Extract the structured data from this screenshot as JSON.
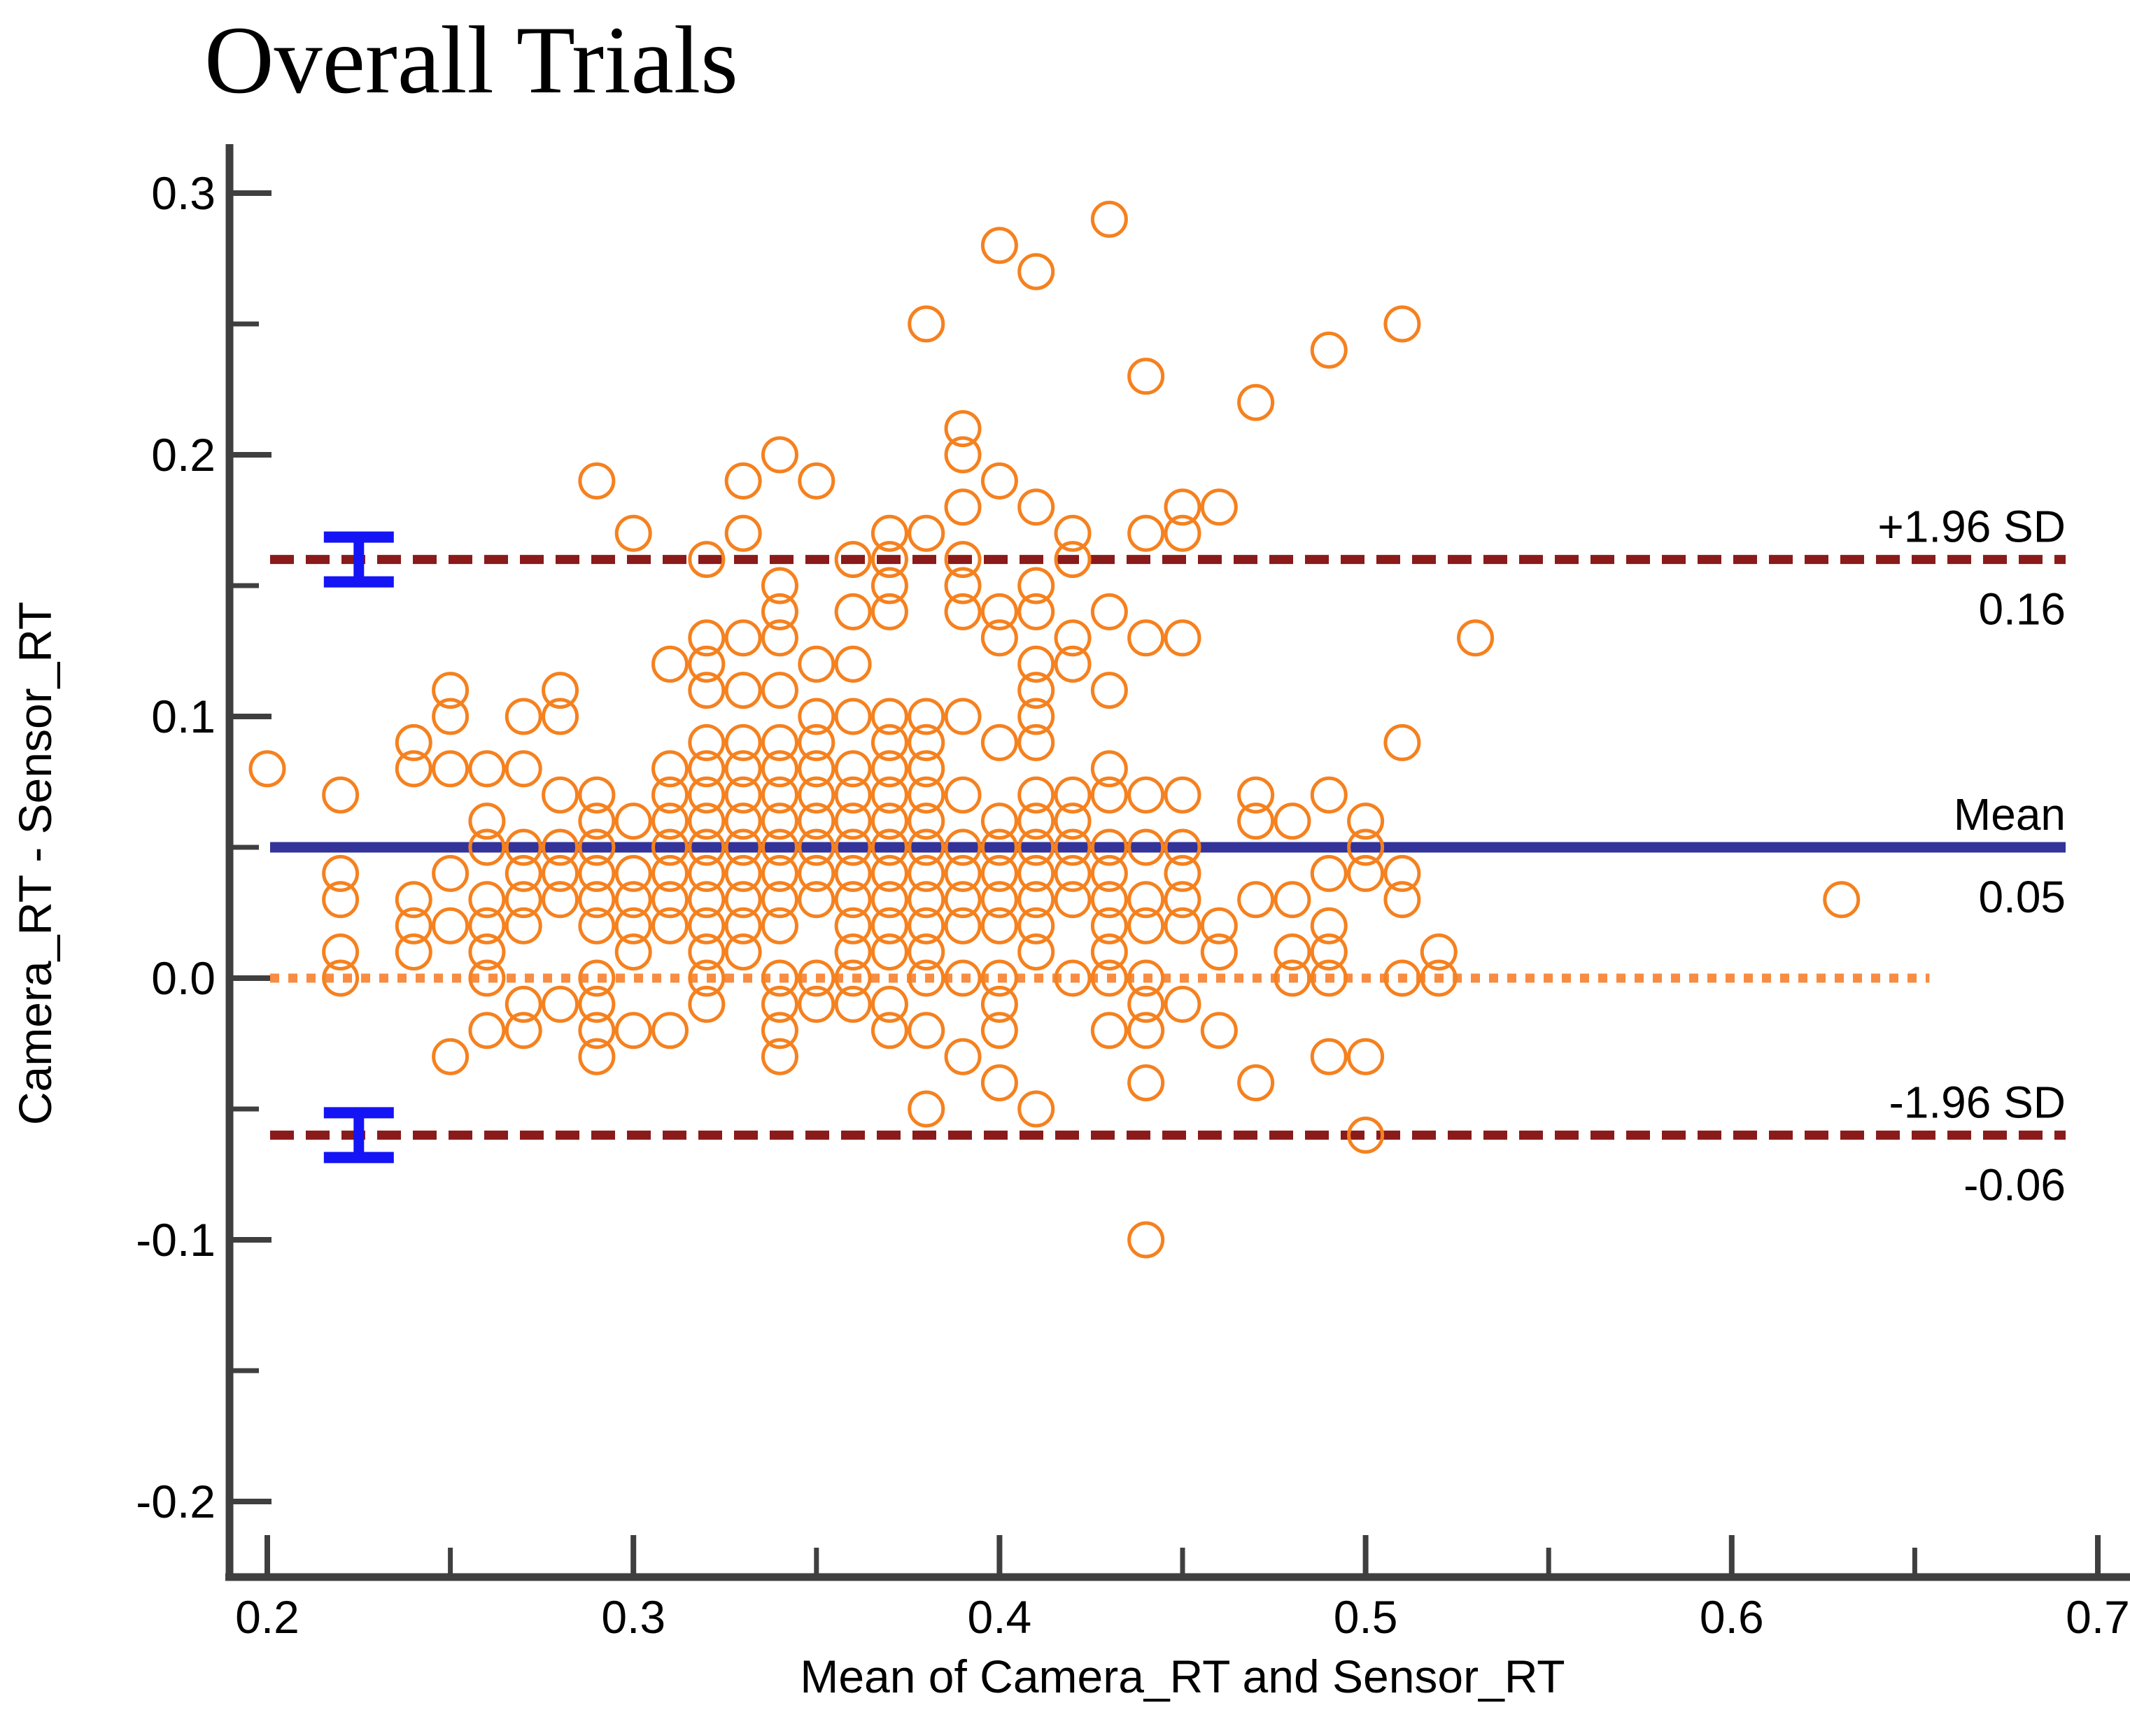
{
  "title": "Overall Trials",
  "colors": {
    "marker": "#F5811F",
    "zero_line": "#F78C42",
    "loa_line": "#8B1A1A",
    "mean_line": "#333399",
    "error_bar": "#1414F5",
    "axis": "#3F3F3F",
    "text": "#000000"
  },
  "chart_data": {
    "type": "scatter",
    "title": "Overall Trials",
    "xlabel": "Mean of Camera_RT and Sensor_RT",
    "ylabel": "Camera_RT - Sensor_RT",
    "xlim": [
      0.19,
      0.71
    ],
    "ylim": [
      -0.23,
      0.32
    ],
    "grid": false,
    "legend_position": "none",
    "x_ticks_major": [
      0.2,
      0.3,
      0.4,
      0.5,
      0.6,
      0.7
    ],
    "x_ticks_minor": [
      0.25,
      0.35,
      0.45,
      0.55,
      0.65
    ],
    "x_tick_labels": [
      "0.2",
      "0.3",
      "0.4",
      "0.5",
      "0.6",
      "0.7"
    ],
    "y_ticks_major": [
      0.3,
      0.2,
      0.1,
      0.0,
      -0.1,
      -0.2
    ],
    "y_ticks_minor": [
      0.25,
      0.15,
      0.05,
      -0.05,
      -0.15
    ],
    "y_tick_labels": [
      "0.3",
      "0.2",
      "0.1",
      "0.0",
      "-0.1",
      "-0.2"
    ],
    "marker": {
      "shape": "open-circle",
      "color": "#F5811F"
    },
    "reference_lines": [
      {
        "name": "upper-loa",
        "label": "+1.96 SD",
        "value_label": "0.16",
        "y": 0.16,
        "style": "dashed",
        "color": "#8B1A1A"
      },
      {
        "name": "mean",
        "label": "Mean",
        "value_label": "0.05",
        "y": 0.05,
        "style": "solid",
        "color": "#333399"
      },
      {
        "name": "lower-loa",
        "label": "-1.96 SD",
        "value_label": "-0.06",
        "y": -0.06,
        "style": "dashed",
        "color": "#8B1A1A"
      },
      {
        "name": "zero",
        "label": "",
        "value_label": "",
        "y": 0.0,
        "style": "dotted",
        "color": "#F78C42",
        "x_end": 0.654
      }
    ],
    "error_bars": [
      {
        "x": 0.225,
        "y": 0.16
      },
      {
        "x": 0.225,
        "y": -0.06
      }
    ],
    "points": [
      [
        0.43,
        0.29
      ],
      [
        0.4,
        0.28
      ],
      [
        0.41,
        0.27
      ],
      [
        0.38,
        0.25
      ],
      [
        0.51,
        0.25
      ],
      [
        0.49,
        0.24
      ],
      [
        0.44,
        0.23
      ],
      [
        0.47,
        0.22
      ],
      [
        0.39,
        0.21
      ],
      [
        0.34,
        0.2
      ],
      [
        0.39,
        0.2
      ],
      [
        0.29,
        0.19
      ],
      [
        0.33,
        0.19
      ],
      [
        0.35,
        0.19
      ],
      [
        0.4,
        0.19
      ],
      [
        0.39,
        0.18
      ],
      [
        0.41,
        0.18
      ],
      [
        0.45,
        0.18
      ],
      [
        0.46,
        0.18
      ],
      [
        0.3,
        0.17
      ],
      [
        0.33,
        0.17
      ],
      [
        0.37,
        0.17
      ],
      [
        0.38,
        0.17
      ],
      [
        0.42,
        0.17
      ],
      [
        0.44,
        0.17
      ],
      [
        0.45,
        0.17
      ],
      [
        0.32,
        0.16
      ],
      [
        0.36,
        0.16
      ],
      [
        0.37,
        0.16
      ],
      [
        0.39,
        0.16
      ],
      [
        0.42,
        0.16
      ],
      [
        0.34,
        0.15
      ],
      [
        0.37,
        0.15
      ],
      [
        0.39,
        0.15
      ],
      [
        0.41,
        0.15
      ],
      [
        0.34,
        0.14
      ],
      [
        0.36,
        0.14
      ],
      [
        0.37,
        0.14
      ],
      [
        0.39,
        0.14
      ],
      [
        0.4,
        0.14
      ],
      [
        0.41,
        0.14
      ],
      [
        0.43,
        0.14
      ],
      [
        0.32,
        0.13
      ],
      [
        0.33,
        0.13
      ],
      [
        0.34,
        0.13
      ],
      [
        0.4,
        0.13
      ],
      [
        0.42,
        0.13
      ],
      [
        0.44,
        0.13
      ],
      [
        0.45,
        0.13
      ],
      [
        0.53,
        0.13
      ],
      [
        0.31,
        0.12
      ],
      [
        0.32,
        0.12
      ],
      [
        0.35,
        0.12
      ],
      [
        0.36,
        0.12
      ],
      [
        0.41,
        0.12
      ],
      [
        0.42,
        0.12
      ],
      [
        0.25,
        0.11
      ],
      [
        0.28,
        0.11
      ],
      [
        0.32,
        0.11
      ],
      [
        0.33,
        0.11
      ],
      [
        0.34,
        0.11
      ],
      [
        0.41,
        0.11
      ],
      [
        0.43,
        0.11
      ],
      [
        0.25,
        0.1
      ],
      [
        0.27,
        0.1
      ],
      [
        0.28,
        0.1
      ],
      [
        0.35,
        0.1
      ],
      [
        0.36,
        0.1
      ],
      [
        0.37,
        0.1
      ],
      [
        0.38,
        0.1
      ],
      [
        0.39,
        0.1
      ],
      [
        0.41,
        0.1
      ],
      [
        0.24,
        0.09
      ],
      [
        0.32,
        0.09
      ],
      [
        0.33,
        0.09
      ],
      [
        0.34,
        0.09
      ],
      [
        0.35,
        0.09
      ],
      [
        0.37,
        0.09
      ],
      [
        0.38,
        0.09
      ],
      [
        0.4,
        0.09
      ],
      [
        0.41,
        0.09
      ],
      [
        0.51,
        0.09
      ],
      [
        0.2,
        0.08
      ],
      [
        0.24,
        0.08
      ],
      [
        0.25,
        0.08
      ],
      [
        0.26,
        0.08
      ],
      [
        0.27,
        0.08
      ],
      [
        0.31,
        0.08
      ],
      [
        0.32,
        0.08
      ],
      [
        0.33,
        0.08
      ],
      [
        0.34,
        0.08
      ],
      [
        0.35,
        0.08
      ],
      [
        0.36,
        0.08
      ],
      [
        0.37,
        0.08
      ],
      [
        0.38,
        0.08
      ],
      [
        0.43,
        0.08
      ],
      [
        0.22,
        0.07
      ],
      [
        0.28,
        0.07
      ],
      [
        0.29,
        0.07
      ],
      [
        0.31,
        0.07
      ],
      [
        0.32,
        0.07
      ],
      [
        0.33,
        0.07
      ],
      [
        0.34,
        0.07
      ],
      [
        0.35,
        0.07
      ],
      [
        0.36,
        0.07
      ],
      [
        0.37,
        0.07
      ],
      [
        0.38,
        0.07
      ],
      [
        0.39,
        0.07
      ],
      [
        0.41,
        0.07
      ],
      [
        0.42,
        0.07
      ],
      [
        0.43,
        0.07
      ],
      [
        0.44,
        0.07
      ],
      [
        0.45,
        0.07
      ],
      [
        0.47,
        0.07
      ],
      [
        0.49,
        0.07
      ],
      [
        0.26,
        0.06
      ],
      [
        0.29,
        0.06
      ],
      [
        0.3,
        0.06
      ],
      [
        0.31,
        0.06
      ],
      [
        0.32,
        0.06
      ],
      [
        0.33,
        0.06
      ],
      [
        0.34,
        0.06
      ],
      [
        0.35,
        0.06
      ],
      [
        0.36,
        0.06
      ],
      [
        0.37,
        0.06
      ],
      [
        0.38,
        0.06
      ],
      [
        0.4,
        0.06
      ],
      [
        0.41,
        0.06
      ],
      [
        0.42,
        0.06
      ],
      [
        0.47,
        0.06
      ],
      [
        0.48,
        0.06
      ],
      [
        0.5,
        0.06
      ],
      [
        0.26,
        0.05
      ],
      [
        0.27,
        0.05
      ],
      [
        0.28,
        0.05
      ],
      [
        0.29,
        0.05
      ],
      [
        0.31,
        0.05
      ],
      [
        0.32,
        0.05
      ],
      [
        0.33,
        0.05
      ],
      [
        0.34,
        0.05
      ],
      [
        0.35,
        0.05
      ],
      [
        0.36,
        0.05
      ],
      [
        0.37,
        0.05
      ],
      [
        0.38,
        0.05
      ],
      [
        0.39,
        0.05
      ],
      [
        0.4,
        0.05
      ],
      [
        0.41,
        0.05
      ],
      [
        0.42,
        0.05
      ],
      [
        0.43,
        0.05
      ],
      [
        0.44,
        0.05
      ],
      [
        0.45,
        0.05
      ],
      [
        0.5,
        0.05
      ],
      [
        0.22,
        0.04
      ],
      [
        0.25,
        0.04
      ],
      [
        0.27,
        0.04
      ],
      [
        0.28,
        0.04
      ],
      [
        0.29,
        0.04
      ],
      [
        0.3,
        0.04
      ],
      [
        0.31,
        0.04
      ],
      [
        0.32,
        0.04
      ],
      [
        0.33,
        0.04
      ],
      [
        0.34,
        0.04
      ],
      [
        0.35,
        0.04
      ],
      [
        0.36,
        0.04
      ],
      [
        0.37,
        0.04
      ],
      [
        0.38,
        0.04
      ],
      [
        0.39,
        0.04
      ],
      [
        0.4,
        0.04
      ],
      [
        0.41,
        0.04
      ],
      [
        0.42,
        0.04
      ],
      [
        0.43,
        0.04
      ],
      [
        0.45,
        0.04
      ],
      [
        0.49,
        0.04
      ],
      [
        0.5,
        0.04
      ],
      [
        0.51,
        0.04
      ],
      [
        0.22,
        0.03
      ],
      [
        0.24,
        0.03
      ],
      [
        0.26,
        0.03
      ],
      [
        0.27,
        0.03
      ],
      [
        0.28,
        0.03
      ],
      [
        0.29,
        0.03
      ],
      [
        0.3,
        0.03
      ],
      [
        0.31,
        0.03
      ],
      [
        0.32,
        0.03
      ],
      [
        0.33,
        0.03
      ],
      [
        0.34,
        0.03
      ],
      [
        0.35,
        0.03
      ],
      [
        0.36,
        0.03
      ],
      [
        0.37,
        0.03
      ],
      [
        0.38,
        0.03
      ],
      [
        0.39,
        0.03
      ],
      [
        0.4,
        0.03
      ],
      [
        0.41,
        0.03
      ],
      [
        0.42,
        0.03
      ],
      [
        0.43,
        0.03
      ],
      [
        0.44,
        0.03
      ],
      [
        0.45,
        0.03
      ],
      [
        0.47,
        0.03
      ],
      [
        0.48,
        0.03
      ],
      [
        0.51,
        0.03
      ],
      [
        0.63,
        0.03
      ],
      [
        0.24,
        0.02
      ],
      [
        0.25,
        0.02
      ],
      [
        0.26,
        0.02
      ],
      [
        0.27,
        0.02
      ],
      [
        0.29,
        0.02
      ],
      [
        0.3,
        0.02
      ],
      [
        0.31,
        0.02
      ],
      [
        0.32,
        0.02
      ],
      [
        0.33,
        0.02
      ],
      [
        0.34,
        0.02
      ],
      [
        0.36,
        0.02
      ],
      [
        0.37,
        0.02
      ],
      [
        0.38,
        0.02
      ],
      [
        0.39,
        0.02
      ],
      [
        0.4,
        0.02
      ],
      [
        0.41,
        0.02
      ],
      [
        0.43,
        0.02
      ],
      [
        0.44,
        0.02
      ],
      [
        0.45,
        0.02
      ],
      [
        0.46,
        0.02
      ],
      [
        0.49,
        0.02
      ],
      [
        0.22,
        0.01
      ],
      [
        0.24,
        0.01
      ],
      [
        0.26,
        0.01
      ],
      [
        0.3,
        0.01
      ],
      [
        0.32,
        0.01
      ],
      [
        0.33,
        0.01
      ],
      [
        0.36,
        0.01
      ],
      [
        0.37,
        0.01
      ],
      [
        0.38,
        0.01
      ],
      [
        0.41,
        0.01
      ],
      [
        0.43,
        0.01
      ],
      [
        0.46,
        0.01
      ],
      [
        0.48,
        0.01
      ],
      [
        0.49,
        0.01
      ],
      [
        0.52,
        0.01
      ],
      [
        0.22,
        0.0
      ],
      [
        0.26,
        0.0
      ],
      [
        0.29,
        0.0
      ],
      [
        0.32,
        0.0
      ],
      [
        0.34,
        0.0
      ],
      [
        0.35,
        0.0
      ],
      [
        0.36,
        0.0
      ],
      [
        0.38,
        0.0
      ],
      [
        0.39,
        0.0
      ],
      [
        0.4,
        0.0
      ],
      [
        0.42,
        0.0
      ],
      [
        0.43,
        0.0
      ],
      [
        0.44,
        0.0
      ],
      [
        0.48,
        0.0
      ],
      [
        0.49,
        0.0
      ],
      [
        0.51,
        0.0
      ],
      [
        0.52,
        0.0
      ],
      [
        0.27,
        -0.01
      ],
      [
        0.28,
        -0.01
      ],
      [
        0.29,
        -0.01
      ],
      [
        0.32,
        -0.01
      ],
      [
        0.34,
        -0.01
      ],
      [
        0.35,
        -0.01
      ],
      [
        0.36,
        -0.01
      ],
      [
        0.37,
        -0.01
      ],
      [
        0.4,
        -0.01
      ],
      [
        0.44,
        -0.01
      ],
      [
        0.45,
        -0.01
      ],
      [
        0.26,
        -0.02
      ],
      [
        0.27,
        -0.02
      ],
      [
        0.29,
        -0.02
      ],
      [
        0.3,
        -0.02
      ],
      [
        0.31,
        -0.02
      ],
      [
        0.34,
        -0.02
      ],
      [
        0.37,
        -0.02
      ],
      [
        0.38,
        -0.02
      ],
      [
        0.4,
        -0.02
      ],
      [
        0.43,
        -0.02
      ],
      [
        0.44,
        -0.02
      ],
      [
        0.46,
        -0.02
      ],
      [
        0.25,
        -0.03
      ],
      [
        0.29,
        -0.03
      ],
      [
        0.34,
        -0.03
      ],
      [
        0.39,
        -0.03
      ],
      [
        0.49,
        -0.03
      ],
      [
        0.5,
        -0.03
      ],
      [
        0.4,
        -0.04
      ],
      [
        0.44,
        -0.04
      ],
      [
        0.47,
        -0.04
      ],
      [
        0.38,
        -0.05
      ],
      [
        0.41,
        -0.05
      ],
      [
        0.5,
        -0.06
      ],
      [
        0.44,
        -0.1
      ]
    ]
  }
}
